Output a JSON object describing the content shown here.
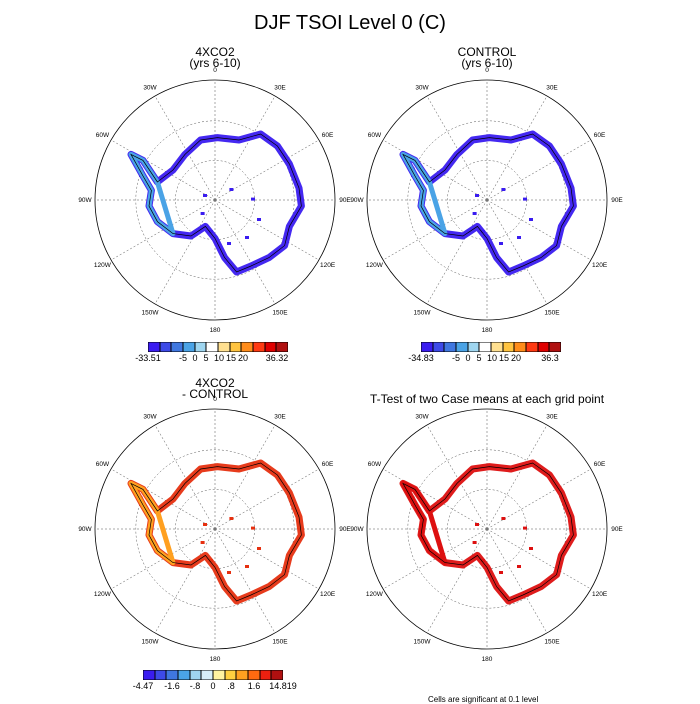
{
  "title": "DJF TSOI Level 0 (C)",
  "lon_labels": [
    "0",
    "30E",
    "60E",
    "90E",
    "120E",
    "150E",
    "180",
    "150W",
    "120W",
    "90W",
    "60W",
    "30W"
  ],
  "panels": [
    {
      "id": "4xco2",
      "title_line1": "4XCO2",
      "title_line2": "(yrs 6-10)",
      "colorbar": {
        "colors": [
          "#3a1cf0",
          "#3d4ae8",
          "#3f77e0",
          "#4aa3e6",
          "#9fd6f0",
          "#ffffff",
          "#ffe090",
          "#ffc440",
          "#ff8c1a",
          "#ff3a12",
          "#e00000",
          "#b01010"
        ],
        "labels": [
          "-33.51",
          "-5",
          "0",
          "5",
          "10",
          "15",
          "20",
          "36.32"
        ]
      }
    },
    {
      "id": "control",
      "title_line1": "CONTROL",
      "title_line2": "(yrs 6-10)",
      "colorbar": {
        "colors": [
          "#3a1cf0",
          "#3d4ae8",
          "#3f77e0",
          "#4aa3e6",
          "#9fd6f0",
          "#ffffff",
          "#ffe090",
          "#ffc440",
          "#ff8c1a",
          "#ff3a12",
          "#e00000",
          "#b01010"
        ],
        "labels": [
          "-34.83",
          "-5",
          "0",
          "5",
          "10",
          "15",
          "20",
          "36.3"
        ]
      }
    },
    {
      "id": "diff",
      "title_line1": "4XCO2",
      "title_line2": "- CONTROL",
      "colorbar": {
        "colors": [
          "#3a1cf0",
          "#3d4ae8",
          "#3f77e0",
          "#4aa3e6",
          "#9fd6f0",
          "#d7eef8",
          "#fff3a0",
          "#ffd040",
          "#ffa020",
          "#ff6a10",
          "#ee2010",
          "#b01010"
        ],
        "labels": [
          "-4.47",
          "-1.6",
          "-.8",
          "0",
          ".8",
          "1.6",
          "14.819"
        ]
      }
    },
    {
      "id": "ttest",
      "title_line1": "T-Test of two Case means at each grid point",
      "title_line2": ""
    }
  ],
  "footnote": "Cells are significant at 0.1 level",
  "fill_colors": {
    "cold": "#3a1cf0",
    "coast_blue": "#4aa3e6",
    "diff_warm": "#ffa020",
    "diff_red": "#e63010",
    "sig_red": "#dd1010"
  }
}
